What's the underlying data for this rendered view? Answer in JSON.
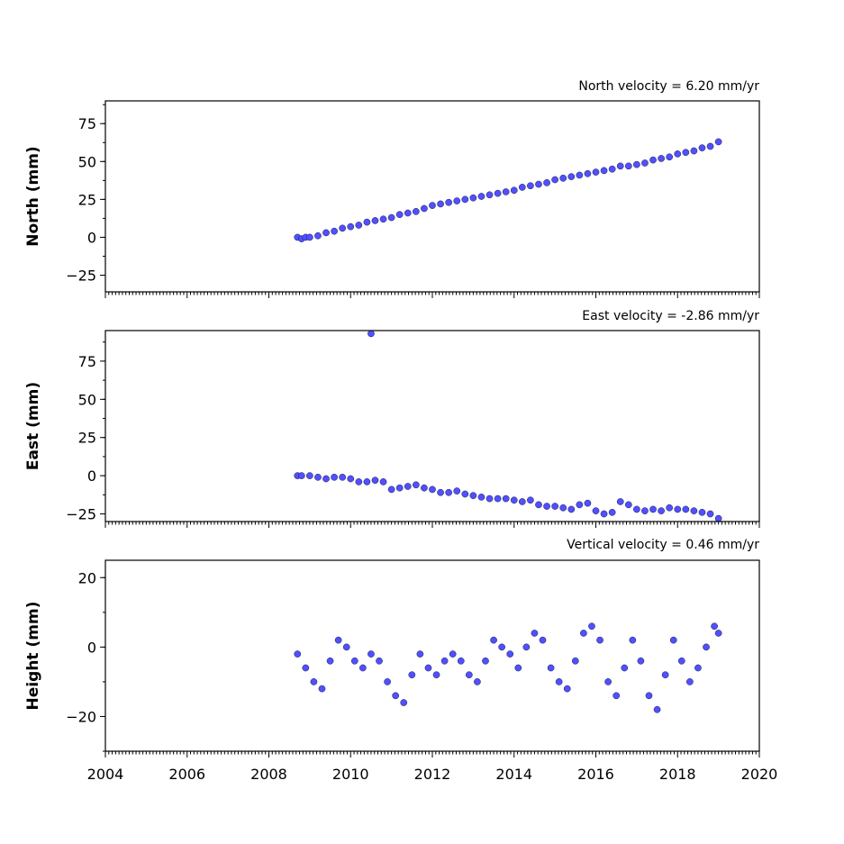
{
  "chart_data": [
    {
      "type": "scatter",
      "annotation": "North velocity = 6.20 mm/yr",
      "ylabel": "North (mm)",
      "xlim": [
        2004,
        2020
      ],
      "ylim": [
        -36,
        90
      ],
      "yticks": [
        -25,
        0,
        25,
        50,
        75
      ],
      "velocity_mm_per_yr": 6.2,
      "series_fit": {
        "start": [
          2008.8,
          0
        ],
        "end": [
          2019.0,
          63
        ]
      },
      "x": [
        2008.7,
        2008.8,
        2008.9,
        2009.0,
        2009.2,
        2009.4,
        2009.6,
        2009.8,
        2010.0,
        2010.2,
        2010.4,
        2010.6,
        2010.8,
        2011.0,
        2011.2,
        2011.4,
        2011.6,
        2011.8,
        2012.0,
        2012.2,
        2012.4,
        2012.6,
        2012.8,
        2013.0,
        2013.2,
        2013.4,
        2013.6,
        2013.8,
        2014.0,
        2014.2,
        2014.4,
        2014.6,
        2014.8,
        2015.0,
        2015.2,
        2015.4,
        2015.6,
        2015.8,
        2016.0,
        2016.2,
        2016.4,
        2016.6,
        2016.8,
        2017.0,
        2017.2,
        2017.4,
        2017.6,
        2017.8,
        2018.0,
        2018.2,
        2018.4,
        2018.6,
        2018.8,
        2019.0
      ],
      "y": [
        0,
        -1,
        0,
        0,
        1,
        3,
        4,
        6,
        7,
        8,
        10,
        11,
        12,
        13,
        15,
        16,
        17,
        19,
        21,
        22,
        23,
        24,
        25,
        26,
        27,
        28,
        29,
        30,
        31,
        33,
        34,
        35,
        36,
        38,
        39,
        40,
        41,
        42,
        43,
        44,
        45,
        47,
        47,
        48,
        49,
        51,
        52,
        53,
        55,
        56,
        57,
        59,
        60,
        63
      ]
    },
    {
      "type": "scatter",
      "annotation": "East velocity = -2.86 mm/yr",
      "ylabel": "East (mm)",
      "xlim": [
        2004,
        2020
      ],
      "ylim": [
        -30,
        95
      ],
      "yticks": [
        -25,
        0,
        25,
        50,
        75
      ],
      "velocity_mm_per_yr": -2.86,
      "x": [
        2008.7,
        2008.8,
        2009.0,
        2009.2,
        2009.4,
        2009.6,
        2009.8,
        2010.0,
        2010.2,
        2010.4,
        2010.6,
        2010.8,
        2011.0,
        2011.2,
        2011.4,
        2011.6,
        2011.8,
        2012.0,
        2012.2,
        2012.4,
        2012.6,
        2012.8,
        2013.0,
        2013.2,
        2013.4,
        2013.6,
        2013.8,
        2014.0,
        2014.2,
        2014.4,
        2014.6,
        2014.8,
        2015.0,
        2015.2,
        2015.4,
        2015.6,
        2015.8,
        2016.0,
        2016.2,
        2016.4,
        2016.6,
        2016.8,
        2017.0,
        2017.2,
        2017.4,
        2017.6,
        2017.8,
        2018.0,
        2018.2,
        2018.4,
        2018.6,
        2018.8,
        2019.0,
        2010.5
      ],
      "y": [
        0,
        0,
        0,
        -1,
        -2,
        -1,
        -1,
        -2,
        -4,
        -4,
        -3,
        -4,
        -9,
        -8,
        -7,
        -6,
        -8,
        -9,
        -11,
        -11,
        -10,
        -12,
        -13,
        -14,
        -15,
        -15,
        -15,
        -16,
        -17,
        -16,
        -19,
        -20,
        -20,
        -21,
        -22,
        -19,
        -18,
        -23,
        -25,
        -24,
        -17,
        -19,
        -22,
        -23,
        -22,
        -23,
        -21,
        -22,
        -22,
        -23,
        -24,
        -25,
        -28,
        93
      ]
    },
    {
      "type": "scatter",
      "annotation": "Vertical velocity = 0.46 mm/yr",
      "ylabel": "Height (mm)",
      "xlim": [
        2004,
        2020
      ],
      "ylim": [
        -30,
        25
      ],
      "yticks": [
        -20,
        0,
        20
      ],
      "xticks": [
        2004,
        2006,
        2008,
        2010,
        2012,
        2014,
        2016,
        2018,
        2020
      ],
      "velocity_mm_per_yr": 0.46,
      "x": [
        2008.7,
        2008.9,
        2009.1,
        2009.3,
        2009.5,
        2009.7,
        2009.9,
        2010.1,
        2010.3,
        2010.5,
        2010.7,
        2010.9,
        2011.1,
        2011.3,
        2011.5,
        2011.7,
        2011.9,
        2012.1,
        2012.3,
        2012.5,
        2012.7,
        2012.9,
        2013.1,
        2013.3,
        2013.5,
        2013.7,
        2013.9,
        2014.1,
        2014.3,
        2014.5,
        2014.7,
        2014.9,
        2015.1,
        2015.3,
        2015.5,
        2015.7,
        2015.9,
        2016.1,
        2016.3,
        2016.5,
        2016.7,
        2016.9,
        2017.1,
        2017.3,
        2017.5,
        2017.7,
        2017.9,
        2018.1,
        2018.3,
        2018.5,
        2018.7,
        2018.9,
        2019.0
      ],
      "y": [
        -2,
        -6,
        -10,
        -12,
        -4,
        2,
        0,
        -4,
        -6,
        -2,
        -4,
        -10,
        -14,
        -16,
        -8,
        -2,
        -6,
        -8,
        -4,
        -2,
        -4,
        -8,
        -10,
        -4,
        2,
        0,
        -2,
        -6,
        0,
        4,
        2,
        -6,
        -10,
        -12,
        -4,
        4,
        6,
        2,
        -10,
        -14,
        -6,
        2,
        -4,
        -14,
        -18,
        -8,
        2,
        -4,
        -10,
        -6,
        0,
        6,
        4
      ]
    }
  ]
}
